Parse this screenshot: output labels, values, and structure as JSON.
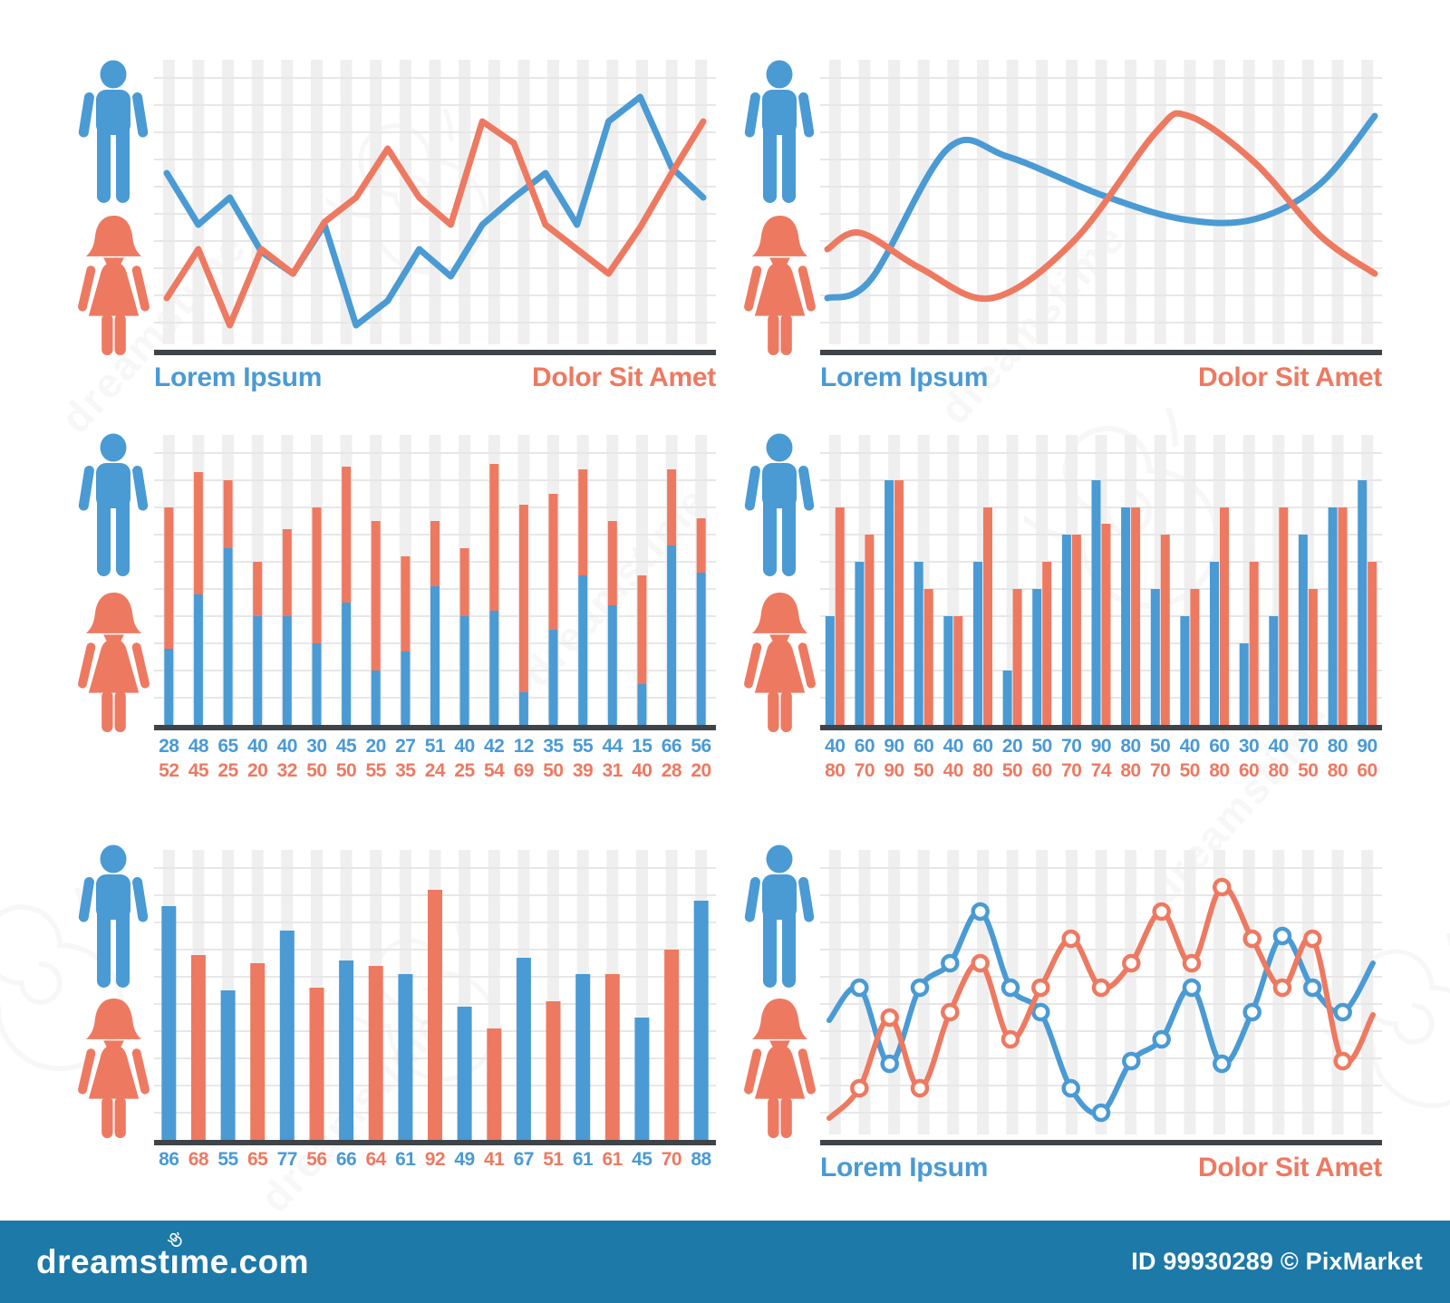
{
  "palette": {
    "male_blue": "#4A9AD4",
    "female_orange": "#EE7961",
    "axis": "#3E4448",
    "grid": "#E7E7E7",
    "stripe": "#EFEFEF",
    "footer_blue": "#1C79A8",
    "marker_fill": "#FFFFFF"
  },
  "icons": {
    "male": "male-pictogram",
    "female": "female-pictogram"
  },
  "watermark": {
    "text": "dreamstime"
  },
  "footer": {
    "logo_text": "dreamstime.com",
    "credit_text": "ID 99930289 © PixMarket"
  },
  "chart_data": [
    {
      "id": "zigzag-line",
      "type": "line",
      "position": "top-left",
      "ylim": [
        0,
        100
      ],
      "grid": true,
      "legend_position": "below",
      "labels": {
        "left": "Lorem Ipsum",
        "right": "Dolor Sit Amet"
      },
      "series": [
        {
          "name": "Lorem Ipsum",
          "color_key": "male_blue",
          "values": [
            65,
            46,
            56,
            36,
            28,
            46,
            9,
            18,
            37,
            27,
            46,
            56,
            65,
            46,
            84,
            93,
            67,
            56
          ]
        },
        {
          "name": "Dolor Sit Amet",
          "color_key": "female_orange",
          "values": [
            19,
            37,
            9,
            37,
            28,
            47,
            56,
            74,
            56,
            46,
            84,
            76,
            46,
            37,
            28,
            45,
            65,
            84
          ]
        }
      ]
    },
    {
      "id": "smooth-curves",
      "type": "smooth",
      "position": "top-right",
      "ylim": [
        0,
        100
      ],
      "grid": true,
      "legend_position": "below",
      "labels": {
        "left": "Lorem Ipsum",
        "right": "Dolor Sit Amet"
      },
      "series": [
        {
          "name": "Lorem Ipsum",
          "color_key": "male_blue",
          "points": [
            [
              0,
              19
            ],
            [
              0.08,
              26
            ],
            [
              0.22,
              74
            ],
            [
              0.33,
              71
            ],
            [
              0.5,
              57
            ],
            [
              0.65,
              48
            ],
            [
              0.78,
              48
            ],
            [
              0.9,
              61
            ],
            [
              1,
              86
            ]
          ]
        },
        {
          "name": "Dolor Sit Amet",
          "color_key": "female_orange",
          "points": [
            [
              0,
              37
            ],
            [
              0.06,
              43
            ],
            [
              0.17,
              30
            ],
            [
              0.3,
              19
            ],
            [
              0.45,
              40
            ],
            [
              0.6,
              80
            ],
            [
              0.66,
              86
            ],
            [
              0.78,
              69
            ],
            [
              0.9,
              42
            ],
            [
              1,
              28
            ]
          ]
        }
      ]
    },
    {
      "id": "stacked-bars",
      "type": "stacked-bar",
      "position": "middle-left",
      "ylim": [
        0,
        100
      ],
      "grid": true,
      "male_values": [
        28,
        48,
        65,
        40,
        40,
        30,
        45,
        20,
        27,
        51,
        40,
        42,
        12,
        35,
        55,
        44,
        15,
        66,
        56
      ],
      "female_values": [
        52,
        45,
        25,
        20,
        32,
        50,
        50,
        55,
        35,
        24,
        25,
        54,
        69,
        50,
        39,
        31,
        40,
        28,
        20
      ]
    },
    {
      "id": "grouped-bars",
      "type": "grouped-bar",
      "position": "middle-right",
      "ylim": [
        0,
        100
      ],
      "grid": true,
      "male_values": [
        40,
        60,
        90,
        60,
        40,
        60,
        20,
        50,
        70,
        90,
        80,
        50,
        40,
        60,
        30,
        40,
        70,
        80,
        90
      ],
      "female_values": [
        80,
        70,
        90,
        50,
        40,
        80,
        50,
        60,
        70,
        74,
        80,
        70,
        50,
        80,
        60,
        80,
        50,
        80,
        60
      ]
    },
    {
      "id": "alternating-bars",
      "type": "alt-bar",
      "position": "bottom-left",
      "ylim": [
        0,
        100
      ],
      "grid": true,
      "values": [
        86,
        68,
        55,
        65,
        77,
        56,
        66,
        64,
        61,
        92,
        49,
        41,
        67,
        51,
        61,
        61,
        45,
        70,
        88
      ],
      "color_pattern": [
        "male_blue",
        "female_orange"
      ]
    },
    {
      "id": "marker-lines",
      "type": "smooth-markers",
      "position": "bottom-right",
      "ylim": [
        0,
        100
      ],
      "grid": true,
      "legend_position": "below",
      "labels": {
        "left": "Lorem Ipsum",
        "right": "Dolor Sit Amet"
      },
      "series": [
        {
          "name": "Lorem Ipsum",
          "color_key": "male_blue",
          "values": [
            44,
            56,
            28,
            56,
            65,
            84,
            56,
            47,
            19,
            10,
            29,
            37,
            56,
            28,
            47,
            75,
            56,
            47,
            65
          ]
        },
        {
          "name": "Dolor Sit Amet",
          "color_key": "female_orange",
          "values": [
            8,
            19,
            45,
            19,
            47,
            65,
            37,
            56,
            74,
            56,
            65,
            84,
            65,
            93,
            74,
            56,
            74,
            29,
            46
          ]
        }
      ]
    }
  ]
}
